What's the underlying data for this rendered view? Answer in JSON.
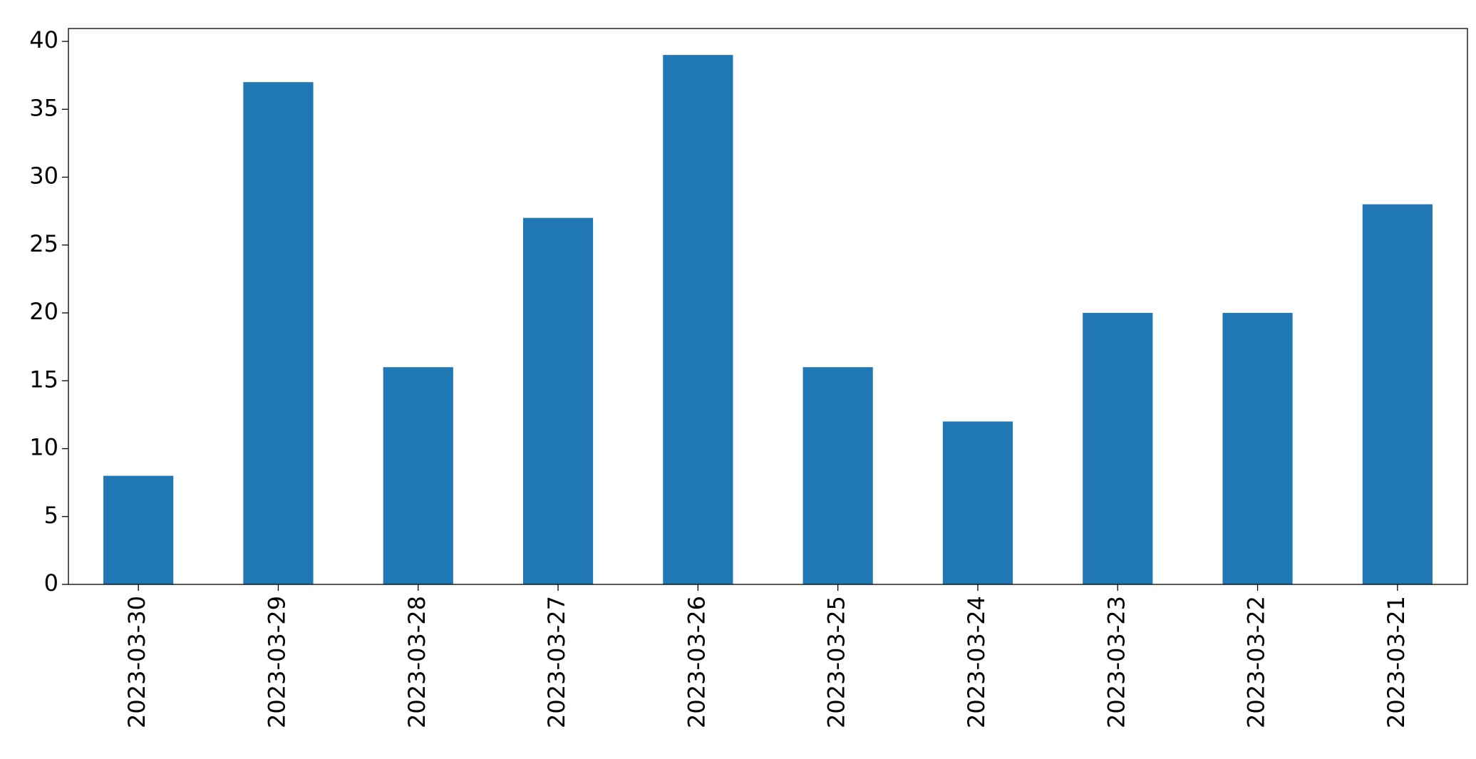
{
  "chart_data": {
    "type": "bar",
    "categories": [
      "2023-03-30",
      "2023-03-29",
      "2023-03-28",
      "2023-03-27",
      "2023-03-26",
      "2023-03-25",
      "2023-03-24",
      "2023-03-23",
      "2023-03-22",
      "2023-03-21"
    ],
    "values": [
      8,
      37,
      16,
      27,
      39,
      16,
      12,
      20,
      20,
      28
    ],
    "color": "#1f77b4",
    "ylim": [
      0,
      40.95
    ],
    "yticks": [
      0,
      5,
      10,
      15,
      20,
      25,
      30,
      35,
      40
    ],
    "grid": false
  }
}
